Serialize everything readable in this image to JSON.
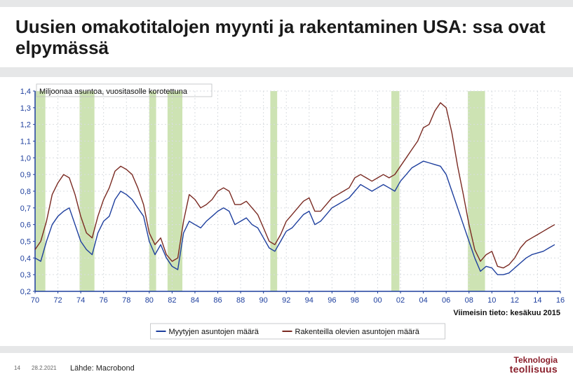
{
  "title": "Uusien omakotitalojen myynti ja rakentaminen USA: ssa ovat elpymässä",
  "footer": {
    "page_num": "14",
    "date": "28.2.2021",
    "source": "Lähde: Macrobond",
    "logo_line1": "Teknologia",
    "logo_line2": "teollisuus"
  },
  "chart": {
    "type": "line",
    "y_axis_title": "Miljoonaa asuntoa, vuositasolle korotettuna",
    "x_axis_note": "Viimeisin tieto: kesäkuu 2015",
    "legend": [
      {
        "label": "Myytyjen asuntojen määrä",
        "color": "#1e3f9e"
      },
      {
        "label": "Rakenteilla olevien asuntojen määrä",
        "color": "#7a2a22"
      }
    ],
    "background_color": "#ffffff",
    "grid_color": "#d9dde1",
    "axis_color": "#1e3f9e",
    "tick_label_color": "#1e3f9e",
    "text_color": "#111111",
    "recession_band_color": "#cde3b3",
    "tick_fontsize": 11,
    "title_fontsize": 11,
    "legend_fontsize": 11,
    "line_width": 1.4,
    "xlim": [
      1970,
      2016
    ],
    "ylim": [
      0.2,
      1.4
    ],
    "ytick_step": 0.1,
    "yticks": [
      "0,2",
      "0,3",
      "0,4",
      "0,5",
      "0,6",
      "0,7",
      "0,8",
      "0,9",
      "1,0",
      "1,1",
      "1,2",
      "1,3",
      "1,4"
    ],
    "xticks": [
      70,
      72,
      74,
      76,
      78,
      80,
      82,
      84,
      86,
      88,
      90,
      92,
      94,
      96,
      98,
      "00",
      "02",
      "04",
      "06",
      "08",
      10,
      12,
      14,
      16
    ],
    "recession_bands": [
      [
        1970.0,
        1970.9
      ],
      [
        1973.9,
        1975.2
      ],
      [
        1980.0,
        1980.6
      ],
      [
        1981.6,
        1982.9
      ],
      [
        1990.6,
        1991.2
      ],
      [
        2001.2,
        2001.9
      ],
      [
        2007.9,
        2009.4
      ]
    ],
    "series": [
      {
        "name": "sold",
        "color": "#1e3f9e",
        "points": [
          [
            1970.0,
            0.4
          ],
          [
            1970.5,
            0.38
          ],
          [
            1971.0,
            0.5
          ],
          [
            1971.5,
            0.6
          ],
          [
            1972.0,
            0.65
          ],
          [
            1972.5,
            0.68
          ],
          [
            1973.0,
            0.7
          ],
          [
            1973.5,
            0.6
          ],
          [
            1974.0,
            0.5
          ],
          [
            1974.5,
            0.45
          ],
          [
            1975.0,
            0.42
          ],
          [
            1975.5,
            0.55
          ],
          [
            1976.0,
            0.62
          ],
          [
            1976.5,
            0.65
          ],
          [
            1977.0,
            0.75
          ],
          [
            1977.5,
            0.8
          ],
          [
            1978.0,
            0.78
          ],
          [
            1978.5,
            0.75
          ],
          [
            1979.0,
            0.7
          ],
          [
            1979.5,
            0.65
          ],
          [
            1980.0,
            0.5
          ],
          [
            1980.5,
            0.42
          ],
          [
            1981.0,
            0.48
          ],
          [
            1981.5,
            0.4
          ],
          [
            1982.0,
            0.35
          ],
          [
            1982.5,
            0.33
          ],
          [
            1983.0,
            0.55
          ],
          [
            1983.5,
            0.62
          ],
          [
            1984.0,
            0.6
          ],
          [
            1984.5,
            0.58
          ],
          [
            1985.0,
            0.62
          ],
          [
            1985.5,
            0.65
          ],
          [
            1986.0,
            0.68
          ],
          [
            1986.5,
            0.7
          ],
          [
            1987.0,
            0.68
          ],
          [
            1987.5,
            0.6
          ],
          [
            1988.0,
            0.62
          ],
          [
            1988.5,
            0.64
          ],
          [
            1989.0,
            0.6
          ],
          [
            1989.5,
            0.58
          ],
          [
            1990.0,
            0.52
          ],
          [
            1990.5,
            0.46
          ],
          [
            1991.0,
            0.44
          ],
          [
            1991.5,
            0.5
          ],
          [
            1992.0,
            0.56
          ],
          [
            1992.5,
            0.58
          ],
          [
            1993.0,
            0.62
          ],
          [
            1993.5,
            0.66
          ],
          [
            1994.0,
            0.68
          ],
          [
            1994.5,
            0.6
          ],
          [
            1995.0,
            0.62
          ],
          [
            1995.5,
            0.66
          ],
          [
            1996.0,
            0.7
          ],
          [
            1996.5,
            0.72
          ],
          [
            1997.0,
            0.74
          ],
          [
            1997.5,
            0.76
          ],
          [
            1998.0,
            0.8
          ],
          [
            1998.5,
            0.84
          ],
          [
            1999.0,
            0.82
          ],
          [
            1999.5,
            0.8
          ],
          [
            2000.0,
            0.82
          ],
          [
            2000.5,
            0.84
          ],
          [
            2001.0,
            0.82
          ],
          [
            2001.5,
            0.8
          ],
          [
            2002.0,
            0.86
          ],
          [
            2002.5,
            0.9
          ],
          [
            2003.0,
            0.94
          ],
          [
            2003.5,
            0.96
          ],
          [
            2004.0,
            0.98
          ],
          [
            2004.5,
            0.97
          ],
          [
            2005.0,
            0.96
          ],
          [
            2005.5,
            0.95
          ],
          [
            2006.0,
            0.9
          ],
          [
            2006.5,
            0.8
          ],
          [
            2007.0,
            0.7
          ],
          [
            2007.5,
            0.6
          ],
          [
            2008.0,
            0.5
          ],
          [
            2008.5,
            0.4
          ],
          [
            2009.0,
            0.32
          ],
          [
            2009.5,
            0.35
          ],
          [
            2010.0,
            0.34
          ],
          [
            2010.5,
            0.3
          ],
          [
            2011.0,
            0.3
          ],
          [
            2011.5,
            0.31
          ],
          [
            2012.0,
            0.34
          ],
          [
            2012.5,
            0.37
          ],
          [
            2013.0,
            0.4
          ],
          [
            2013.5,
            0.42
          ],
          [
            2014.0,
            0.43
          ],
          [
            2014.5,
            0.44
          ],
          [
            2015.0,
            0.46
          ],
          [
            2015.5,
            0.48
          ]
        ]
      },
      {
        "name": "under_construction",
        "color": "#7a2a22",
        "points": [
          [
            1970.0,
            0.45
          ],
          [
            1970.5,
            0.5
          ],
          [
            1971.0,
            0.62
          ],
          [
            1971.5,
            0.78
          ],
          [
            1972.0,
            0.85
          ],
          [
            1972.5,
            0.9
          ],
          [
            1973.0,
            0.88
          ],
          [
            1973.5,
            0.78
          ],
          [
            1974.0,
            0.65
          ],
          [
            1974.5,
            0.55
          ],
          [
            1975.0,
            0.52
          ],
          [
            1975.5,
            0.65
          ],
          [
            1976.0,
            0.75
          ],
          [
            1976.5,
            0.82
          ],
          [
            1977.0,
            0.92
          ],
          [
            1977.5,
            0.95
          ],
          [
            1978.0,
            0.93
          ],
          [
            1978.5,
            0.9
          ],
          [
            1979.0,
            0.82
          ],
          [
            1979.5,
            0.72
          ],
          [
            1980.0,
            0.55
          ],
          [
            1980.5,
            0.48
          ],
          [
            1981.0,
            0.52
          ],
          [
            1981.5,
            0.42
          ],
          [
            1982.0,
            0.38
          ],
          [
            1982.5,
            0.4
          ],
          [
            1983.0,
            0.62
          ],
          [
            1983.5,
            0.78
          ],
          [
            1984.0,
            0.75
          ],
          [
            1984.5,
            0.7
          ],
          [
            1985.0,
            0.72
          ],
          [
            1985.5,
            0.75
          ],
          [
            1986.0,
            0.8
          ],
          [
            1986.5,
            0.82
          ],
          [
            1987.0,
            0.8
          ],
          [
            1987.5,
            0.72
          ],
          [
            1988.0,
            0.72
          ],
          [
            1988.5,
            0.74
          ],
          [
            1989.0,
            0.7
          ],
          [
            1989.5,
            0.66
          ],
          [
            1990.0,
            0.58
          ],
          [
            1990.5,
            0.5
          ],
          [
            1991.0,
            0.48
          ],
          [
            1991.5,
            0.54
          ],
          [
            1992.0,
            0.62
          ],
          [
            1992.5,
            0.66
          ],
          [
            1993.0,
            0.7
          ],
          [
            1993.5,
            0.74
          ],
          [
            1994.0,
            0.76
          ],
          [
            1994.5,
            0.68
          ],
          [
            1995.0,
            0.68
          ],
          [
            1995.5,
            0.72
          ],
          [
            1996.0,
            0.76
          ],
          [
            1996.5,
            0.78
          ],
          [
            1997.0,
            0.8
          ],
          [
            1997.5,
            0.82
          ],
          [
            1998.0,
            0.88
          ],
          [
            1998.5,
            0.9
          ],
          [
            1999.0,
            0.88
          ],
          [
            1999.5,
            0.86
          ],
          [
            2000.0,
            0.88
          ],
          [
            2000.5,
            0.9
          ],
          [
            2001.0,
            0.88
          ],
          [
            2001.5,
            0.9
          ],
          [
            2002.0,
            0.95
          ],
          [
            2002.5,
            1.0
          ],
          [
            2003.0,
            1.05
          ],
          [
            2003.5,
            1.1
          ],
          [
            2004.0,
            1.18
          ],
          [
            2004.5,
            1.2
          ],
          [
            2005.0,
            1.28
          ],
          [
            2005.5,
            1.33
          ],
          [
            2006.0,
            1.3
          ],
          [
            2006.5,
            1.15
          ],
          [
            2007.0,
            0.95
          ],
          [
            2007.5,
            0.78
          ],
          [
            2008.0,
            0.6
          ],
          [
            2008.5,
            0.45
          ],
          [
            2009.0,
            0.38
          ],
          [
            2009.5,
            0.42
          ],
          [
            2010.0,
            0.44
          ],
          [
            2010.5,
            0.35
          ],
          [
            2011.0,
            0.34
          ],
          [
            2011.5,
            0.36
          ],
          [
            2012.0,
            0.4
          ],
          [
            2012.5,
            0.46
          ],
          [
            2013.0,
            0.5
          ],
          [
            2013.5,
            0.52
          ],
          [
            2014.0,
            0.54
          ],
          [
            2014.5,
            0.56
          ],
          [
            2015.0,
            0.58
          ],
          [
            2015.5,
            0.6
          ]
        ]
      }
    ]
  }
}
